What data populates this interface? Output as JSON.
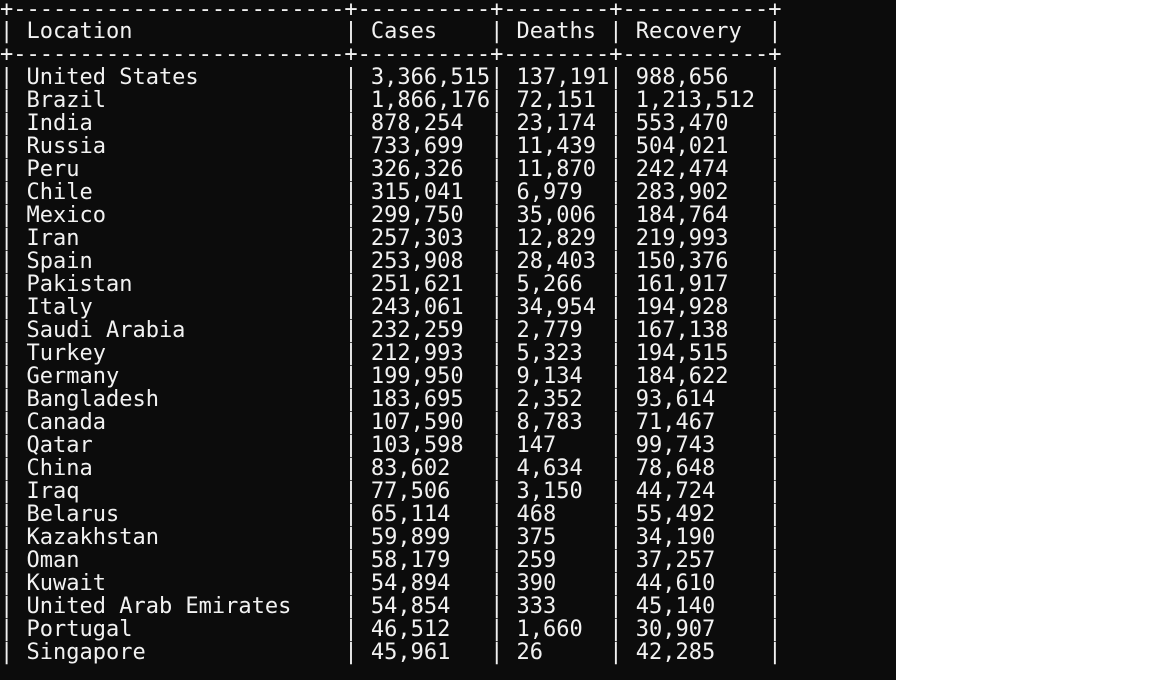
{
  "terminal": {
    "background": "#0c0c0c",
    "foreground": "#f2f2f2",
    "page_background": "#ffffff"
  },
  "table": {
    "border_char_corner": "+",
    "border_char_horizontal": "-",
    "border_char_vertical": "|",
    "columns": [
      "Location",
      "Cases",
      "Deaths",
      "Recovery"
    ],
    "rows": [
      [
        "United States",
        "3,366,515",
        "137,191",
        "988,656"
      ],
      [
        "Brazil",
        "1,866,176",
        "72,151",
        "1,213,512"
      ],
      [
        "India",
        "878,254",
        "23,174",
        "553,470"
      ],
      [
        "Russia",
        "733,699",
        "11,439",
        "504,021"
      ],
      [
        "Peru",
        "326,326",
        "11,870",
        "242,474"
      ],
      [
        "Chile",
        "315,041",
        "6,979",
        "283,902"
      ],
      [
        "Mexico",
        "299,750",
        "35,006",
        "184,764"
      ],
      [
        "Iran",
        "257,303",
        "12,829",
        "219,993"
      ],
      [
        "Spain",
        "253,908",
        "28,403",
        "150,376"
      ],
      [
        "Pakistan",
        "251,621",
        "5,266",
        "161,917"
      ],
      [
        "Italy",
        "243,061",
        "34,954",
        "194,928"
      ],
      [
        "Saudi Arabia",
        "232,259",
        "2,779",
        "167,138"
      ],
      [
        "Turkey",
        "212,993",
        "5,323",
        "194,515"
      ],
      [
        "Germany",
        "199,950",
        "9,134",
        "184,622"
      ],
      [
        "Bangladesh",
        "183,695",
        "2,352",
        "93,614"
      ],
      [
        "Canada",
        "107,590",
        "8,783",
        "71,467"
      ],
      [
        "Qatar",
        "103,598",
        "147",
        "99,743"
      ],
      [
        "China",
        "83,602",
        "4,634",
        "78,648"
      ],
      [
        "Iraq",
        "77,506",
        "3,150",
        "44,724"
      ],
      [
        "Belarus",
        "65,114",
        "468",
        "55,492"
      ],
      [
        "Kazakhstan",
        "59,899",
        "375",
        "34,190"
      ],
      [
        "Oman",
        "58,179",
        "259",
        "37,257"
      ],
      [
        "Kuwait",
        "54,894",
        "390",
        "44,610"
      ],
      [
        "United Arab Emirates",
        "54,854",
        "333",
        "45,140"
      ],
      [
        "Portugal",
        "46,512",
        "1,660",
        "30,907"
      ],
      [
        "Singapore",
        "45,961",
        "26",
        "42,285"
      ]
    ]
  }
}
